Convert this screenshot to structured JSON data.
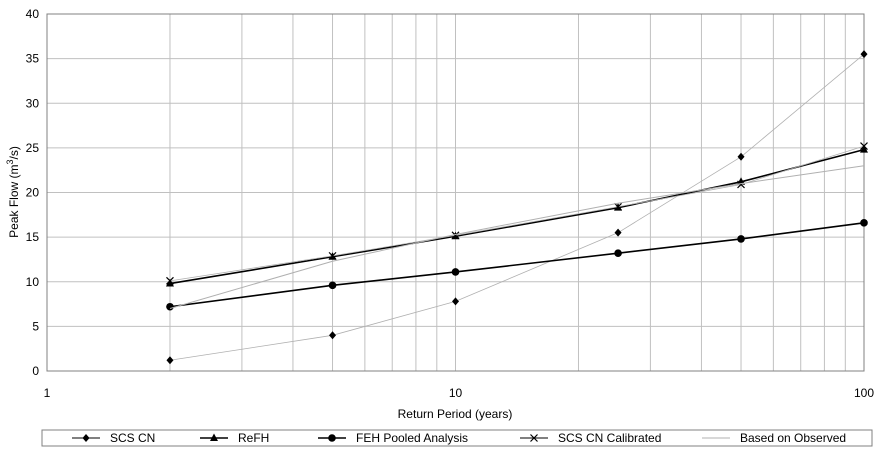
{
  "chart_data": {
    "type": "line",
    "xscale": "log",
    "xlabel": "Return Period (years)",
    "ylabel_main": "Peak Flow (m",
    "ylabel_sup": "3",
    "ylabel_tail": "/s)",
    "xlim": [
      1,
      100
    ],
    "ylim": [
      0,
      40
    ],
    "xticks": [
      1,
      10,
      100
    ],
    "yticks": [
      0,
      5,
      10,
      15,
      20,
      25,
      30,
      35,
      40
    ],
    "grid": true,
    "legend_position": "bottom",
    "series": [
      {
        "name": "SCS CN",
        "marker": "diamond",
        "color": "#000000",
        "x": [
          2,
          5,
          10,
          25,
          50,
          100
        ],
        "y": [
          1.2,
          4.0,
          7.8,
          15.5,
          24.0,
          35.5
        ]
      },
      {
        "name": "ReFH",
        "marker": "triangle",
        "color": "#000000",
        "x": [
          2,
          5,
          10,
          25,
          50,
          100
        ],
        "y": [
          9.8,
          12.8,
          15.1,
          18.3,
          21.2,
          24.8
        ]
      },
      {
        "name": "FEH Pooled Analysis",
        "marker": "circle",
        "color": "#000000",
        "x": [
          2,
          5,
          10,
          25,
          50,
          100
        ],
        "y": [
          7.2,
          9.6,
          11.1,
          13.2,
          14.8,
          16.6
        ]
      },
      {
        "name": "SCS CN Calibrated",
        "marker": "x",
        "color": "#000000",
        "x": [
          2,
          5,
          10,
          25,
          50,
          100
        ],
        "y": [
          10.1,
          12.9,
          15.2,
          18.4,
          20.9,
          25.2
        ]
      },
      {
        "name": "Based on Observed",
        "marker": "none",
        "color": "#b0b0b0",
        "x": [
          2,
          5,
          10,
          25,
          50,
          100
        ],
        "y": [
          7.0,
          12.3,
          15.3,
          18.8,
          21.0,
          23.0
        ]
      }
    ]
  }
}
